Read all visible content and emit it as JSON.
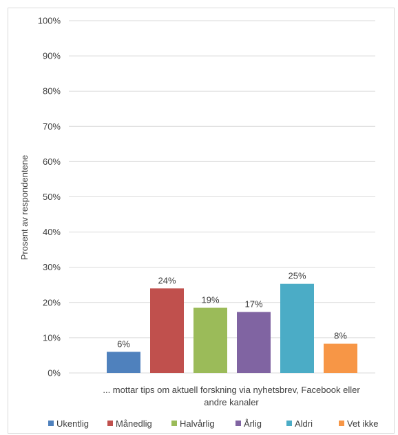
{
  "chart_data": {
    "type": "bar",
    "ylabel": "Prosent av respondentene",
    "xlabel_lines": [
      "... mottar tips om aktuell forskning via nyhetsbrev, Facebook eller",
      "andre kanaler"
    ],
    "ylim": [
      0,
      100
    ],
    "yticks": [
      "0%",
      "10%",
      "20%",
      "30%",
      "40%",
      "50%",
      "60%",
      "70%",
      "80%",
      "90%",
      "100%"
    ],
    "grid": true,
    "legend_position": "bottom",
    "series": [
      {
        "name": "Ukentlig",
        "value": 6,
        "label": "6%",
        "color": "#4f81bd"
      },
      {
        "name": "Månedlig",
        "value": 24,
        "label": "24%",
        "color": "#c0504d"
      },
      {
        "name": "Halvårlig",
        "value": 18.5,
        "label": "19%",
        "color": "#9bbb59"
      },
      {
        "name": "Årlig",
        "value": 17.3,
        "label": "17%",
        "color": "#8064a2"
      },
      {
        "name": "Aldri",
        "value": 25.3,
        "label": "25%",
        "color": "#4bacc6"
      },
      {
        "name": "Vet ikke",
        "value": 8.3,
        "label": "8%",
        "color": "#f79646"
      }
    ]
  }
}
